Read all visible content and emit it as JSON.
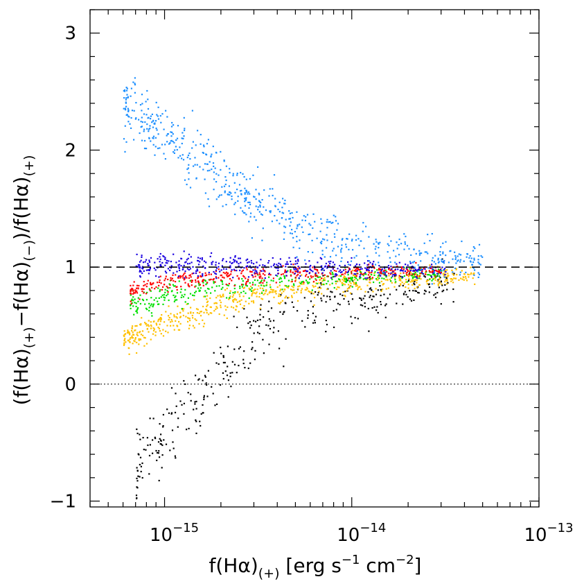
{
  "chart_data": {
    "type": "scatter",
    "title": "",
    "xscale": "log",
    "xlim": [
      4e-16,
      1e-13
    ],
    "ylim": [
      -1.05,
      3.2
    ],
    "xlabel": {
      "base": "f(H",
      "alpha": "α",
      "close": ")",
      "sub": "(+)",
      "unit_open": " [erg s",
      "exp1": "−1",
      "unit_mid": " cm",
      "exp2": "−2",
      "unit_close": "]"
    },
    "ylabel": {
      "p1": "(f(H",
      "alpha": "α",
      "p2": ")",
      "sub1": "(+)",
      "p3": "−f(H",
      "p4": ")",
      "sub2": "(−)",
      "p5": ")/f(H",
      "p6": ")",
      "sub3": "(+)"
    },
    "x_ticks": [
      {
        "value": 1e-15,
        "base": "10",
        "exp": "−15"
      },
      {
        "value": 1e-14,
        "base": "10",
        "exp": "−14"
      },
      {
        "value": 1e-13,
        "base": "10",
        "exp": "−13"
      }
    ],
    "y_ticks": [
      {
        "value": -1,
        "label": "−1"
      },
      {
        "value": 0,
        "label": "0"
      },
      {
        "value": 1,
        "label": "1"
      },
      {
        "value": 2,
        "label": "2"
      },
      {
        "value": 3,
        "label": "3"
      }
    ],
    "reference_lines": [
      {
        "y": 1,
        "style": "dashed"
      },
      {
        "y": 0,
        "style": "dotted"
      }
    ],
    "series": [
      {
        "name": "black",
        "color": "#000000",
        "n": 380,
        "x_range": [
          7e-16,
          3.5e-14
        ],
        "points": [
          [
            7e-16,
            -0.68
          ],
          [
            8e-16,
            -0.6
          ],
          [
            9e-16,
            -0.5
          ],
          [
            1e-15,
            -0.42
          ],
          [
            1.2e-15,
            -0.3
          ],
          [
            1.5e-15,
            -0.1
          ],
          [
            2e-15,
            0.12
          ],
          [
            2.5e-15,
            0.3
          ],
          [
            3e-15,
            0.42
          ],
          [
            4e-15,
            0.55
          ],
          [
            5e-15,
            0.62
          ],
          [
            7e-15,
            0.68
          ],
          [
            1e-14,
            0.72
          ],
          [
            1.5e-14,
            0.76
          ],
          [
            2e-14,
            0.8
          ],
          [
            3e-14,
            0.86
          ],
          [
            3.5e-14,
            0.88
          ]
        ],
        "spread": 0.16
      },
      {
        "name": "yellow",
        "color": "#ffc000",
        "n": 620,
        "x_range": [
          6e-16,
          4.5e-14
        ],
        "points": [
          [
            6e-16,
            0.38
          ],
          [
            8e-16,
            0.48
          ],
          [
            1e-15,
            0.55
          ],
          [
            1.5e-15,
            0.63
          ],
          [
            2e-15,
            0.7
          ],
          [
            3e-15,
            0.77
          ],
          [
            5e-15,
            0.82
          ],
          [
            1e-14,
            0.87
          ],
          [
            2e-14,
            0.91
          ],
          [
            4.5e-14,
            0.94
          ]
        ],
        "spread": 0.06
      },
      {
        "name": "green",
        "color": "#00e000",
        "n": 350,
        "x_range": [
          6.5e-16,
          3e-14
        ],
        "points": [
          [
            6.5e-16,
            0.68
          ],
          [
            1e-15,
            0.76
          ],
          [
            2e-15,
            0.83
          ],
          [
            4e-15,
            0.88
          ],
          [
            1e-14,
            0.92
          ],
          [
            3e-14,
            0.95
          ]
        ],
        "spread": 0.05
      },
      {
        "name": "red",
        "color": "#ff0000",
        "n": 400,
        "x_range": [
          6.5e-16,
          3e-14
        ],
        "points": [
          [
            6.5e-16,
            0.8
          ],
          [
            1e-15,
            0.88
          ],
          [
            2e-15,
            0.92
          ],
          [
            4e-15,
            0.95
          ],
          [
            1e-14,
            0.97
          ],
          [
            3e-14,
            0.98
          ]
        ],
        "spread": 0.04
      },
      {
        "name": "blue",
        "color": "#1a00e0",
        "n": 420,
        "x_range": [
          7e-16,
          3.2e-14
        ],
        "points": [
          [
            7e-16,
            1.02
          ],
          [
            1e-15,
            1.04
          ],
          [
            2e-15,
            1.02
          ],
          [
            5e-15,
            1.0
          ],
          [
            1e-14,
            0.99
          ],
          [
            3.2e-14,
            0.98
          ]
        ],
        "spread": 0.05
      },
      {
        "name": "light-blue",
        "color": "#1e90ff",
        "n": 620,
        "x_range": [
          6e-16,
          5e-14
        ],
        "points": [
          [
            6e-16,
            2.4
          ],
          [
            8e-16,
            2.25
          ],
          [
            1e-15,
            2.15
          ],
          [
            1.5e-15,
            1.95
          ],
          [
            2e-15,
            1.75
          ],
          [
            3e-15,
            1.55
          ],
          [
            4e-15,
            1.42
          ],
          [
            6e-15,
            1.3
          ],
          [
            1e-14,
            1.2
          ],
          [
            1.5e-14,
            1.15
          ],
          [
            2e-14,
            1.15
          ],
          [
            3e-14,
            1.1
          ],
          [
            5e-14,
            1.05
          ]
        ],
        "spread": 0.13
      }
    ]
  }
}
